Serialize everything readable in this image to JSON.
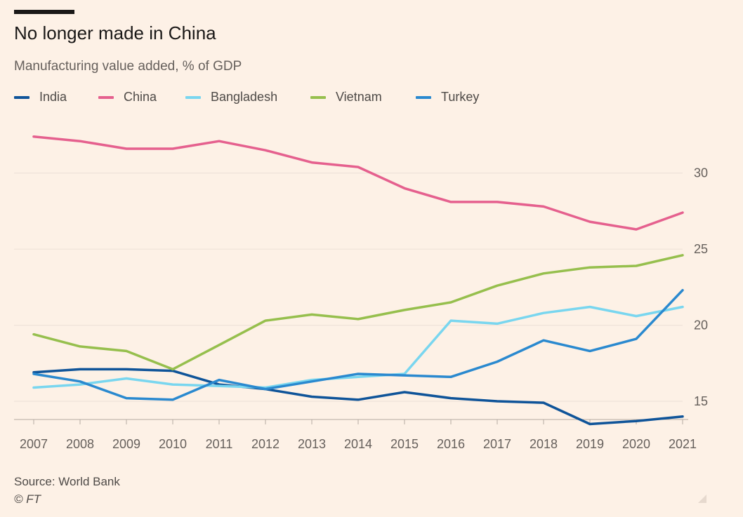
{
  "header": {
    "title": "No longer made in China",
    "subtitle": "Manufacturing value added, % of GDP"
  },
  "footer": {
    "source": "Source: World Bank",
    "credit": "© FT"
  },
  "colors": {
    "background": "#fdf1e6",
    "grid": "#ece0d5",
    "axis": "#b5aba3",
    "India": "#0f5499",
    "China": "#e5608e",
    "Bangladesh": "#79d6ef",
    "Vietnam": "#96bf4d",
    "Turkey": "#2a89cf"
  },
  "chart_data": {
    "type": "line",
    "title": "No longer made in China",
    "subtitle": "Manufacturing value added, % of GDP",
    "x": [
      "2007",
      "2008",
      "2009",
      "2010",
      "2011",
      "2012",
      "2013",
      "2014",
      "2015",
      "2016",
      "2017",
      "2018",
      "2019",
      "2020",
      "2021"
    ],
    "yticks": [
      15,
      20,
      25,
      30
    ],
    "ylim": [
      13.8,
      34
    ],
    "y_axis_side": "right",
    "grid": true,
    "legend_position": "top-left",
    "series": [
      {
        "name": "India",
        "values": [
          16.9,
          17.1,
          17.1,
          17.0,
          16.1,
          15.8,
          15.3,
          15.1,
          15.6,
          15.2,
          15.0,
          14.9,
          13.5,
          13.7,
          14.0
        ]
      },
      {
        "name": "China",
        "values": [
          32.4,
          32.1,
          31.6,
          31.6,
          32.1,
          31.5,
          30.7,
          30.4,
          29.0,
          28.1,
          28.1,
          27.8,
          26.8,
          26.3,
          27.4
        ]
      },
      {
        "name": "Bangladesh",
        "values": [
          15.9,
          16.1,
          16.5,
          16.1,
          16.0,
          15.9,
          16.4,
          16.6,
          16.8,
          20.3,
          20.1,
          20.8,
          21.2,
          20.6,
          21.2
        ]
      },
      {
        "name": "Vietnam",
        "values": [
          19.4,
          18.6,
          18.3,
          17.1,
          18.7,
          20.3,
          20.7,
          20.4,
          21.0,
          21.5,
          22.6,
          23.4,
          23.8,
          23.9,
          24.6
        ]
      },
      {
        "name": "Turkey",
        "values": [
          16.8,
          16.3,
          15.2,
          15.1,
          16.4,
          15.8,
          16.3,
          16.8,
          16.7,
          16.6,
          17.6,
          19.0,
          18.3,
          19.1,
          22.3
        ]
      }
    ]
  }
}
